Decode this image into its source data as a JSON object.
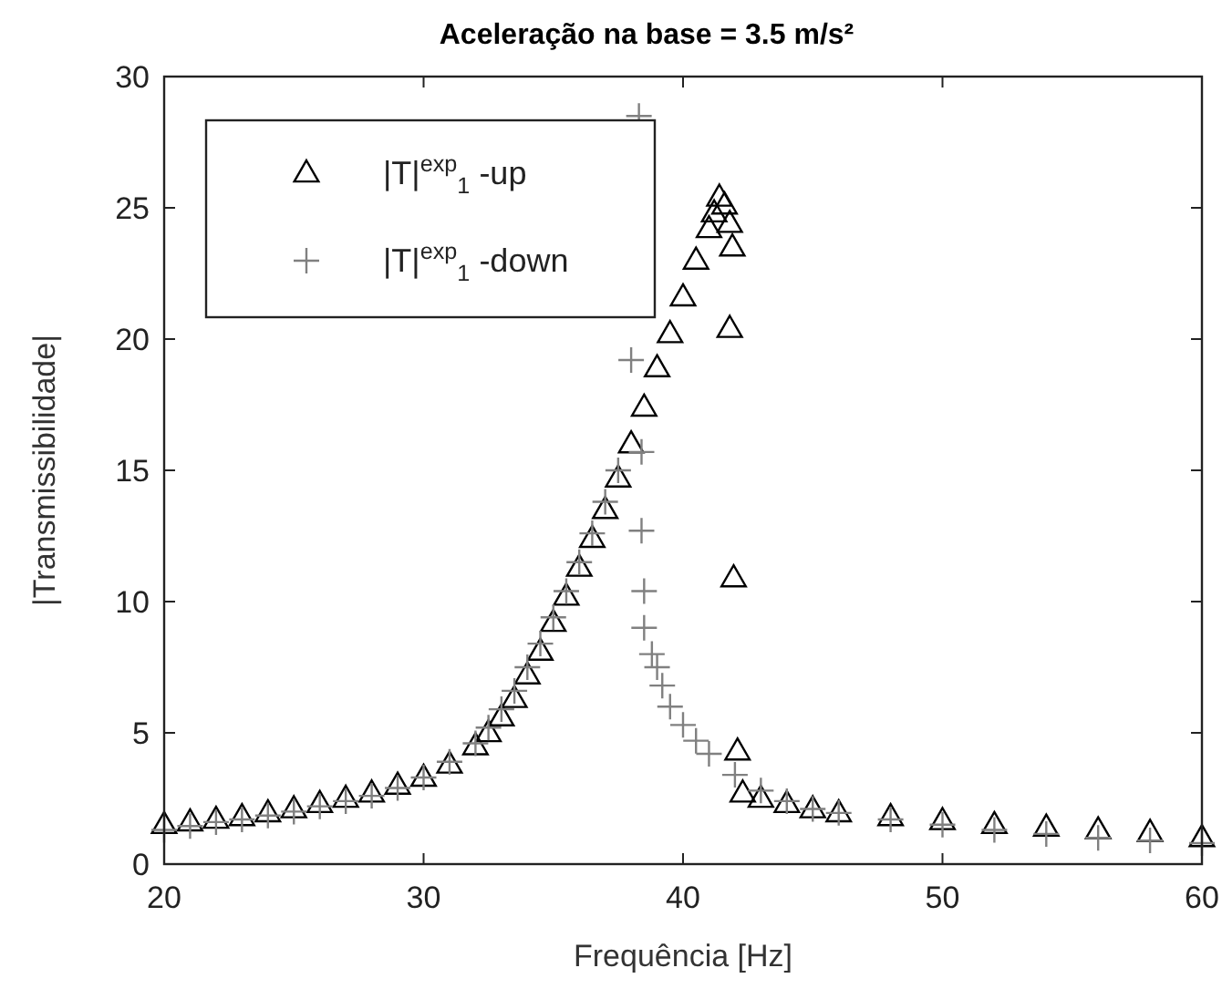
{
  "chart_data": {
    "type": "scatter",
    "title": "Aceleração na base = 3.5 m/s²",
    "xlabel": "Frequência [Hz]",
    "ylabel": "|Transmissibilidade|",
    "xlim": [
      20,
      60
    ],
    "ylim": [
      0,
      30
    ],
    "xticks": [
      20,
      30,
      40,
      50,
      60
    ],
    "yticks": [
      0,
      5,
      10,
      15,
      20,
      25,
      30
    ],
    "grid": false,
    "legend": "top left",
    "series": [
      {
        "name": "|T|$^{exp}$$_{1}$ -up",
        "color": "#000000",
        "marker": "triangle",
        "x": [
          20,
          21,
          22,
          23,
          24,
          25,
          26,
          27,
          28,
          29,
          30,
          31,
          32,
          32.5,
          33,
          33.5,
          34,
          34.5,
          35,
          35.5,
          36,
          36.5,
          37,
          37.5,
          38,
          38.5,
          39,
          39.5,
          40,
          40.5,
          41,
          41.2,
          41.4,
          41.6,
          41.8,
          41.9,
          41.8,
          41.95,
          42.1,
          42.3,
          43,
          44,
          45,
          46,
          48,
          50,
          52,
          54,
          56,
          58,
          60
        ],
        "values": [
          1.5,
          1.6,
          1.7,
          1.8,
          1.95,
          2.1,
          2.3,
          2.5,
          2.7,
          3.0,
          3.3,
          3.8,
          4.5,
          5.0,
          5.6,
          6.3,
          7.2,
          8.1,
          9.2,
          10.2,
          11.3,
          12.4,
          13.5,
          14.7,
          16.0,
          17.4,
          18.9,
          20.2,
          21.6,
          23.0,
          24.2,
          24.8,
          25.4,
          25.1,
          24.4,
          23.5,
          20.4,
          10.9,
          4.3,
          2.7,
          2.5,
          2.3,
          2.1,
          1.95,
          1.8,
          1.65,
          1.5,
          1.4,
          1.3,
          1.2,
          1.0
        ]
      },
      {
        "name": "|T|$^{exp}$$_{1}$ -down",
        "color": "#808080",
        "marker": "cross",
        "x": [
          60,
          58,
          56,
          54,
          52,
          50,
          48,
          46,
          45,
          44,
          43,
          42,
          41,
          40.5,
          40,
          39.5,
          39.2,
          39.0,
          38.8,
          38.5,
          38.5,
          38.4,
          38.4,
          38.3,
          38.0,
          37.5,
          37,
          36.5,
          36,
          35.5,
          35,
          34.5,
          34,
          33.5,
          33,
          32.5,
          32,
          31,
          30,
          29,
          28,
          27,
          26,
          25,
          24,
          23,
          22,
          21,
          20
        ],
        "values": [
          0.8,
          0.9,
          1.0,
          1.15,
          1.3,
          1.5,
          1.7,
          1.95,
          2.1,
          2.4,
          2.8,
          3.4,
          4.2,
          4.7,
          5.3,
          6.0,
          6.8,
          7.5,
          8.0,
          9.0,
          10.4,
          12.7,
          15.7,
          28.5,
          19.2,
          15.0,
          13.8,
          12.6,
          11.5,
          10.4,
          9.4,
          8.4,
          7.5,
          6.6,
          5.9,
          5.2,
          4.6,
          3.9,
          3.3,
          2.9,
          2.6,
          2.4,
          2.2,
          2.0,
          1.85,
          1.7,
          1.6,
          1.45,
          1.3
        ]
      }
    ]
  }
}
